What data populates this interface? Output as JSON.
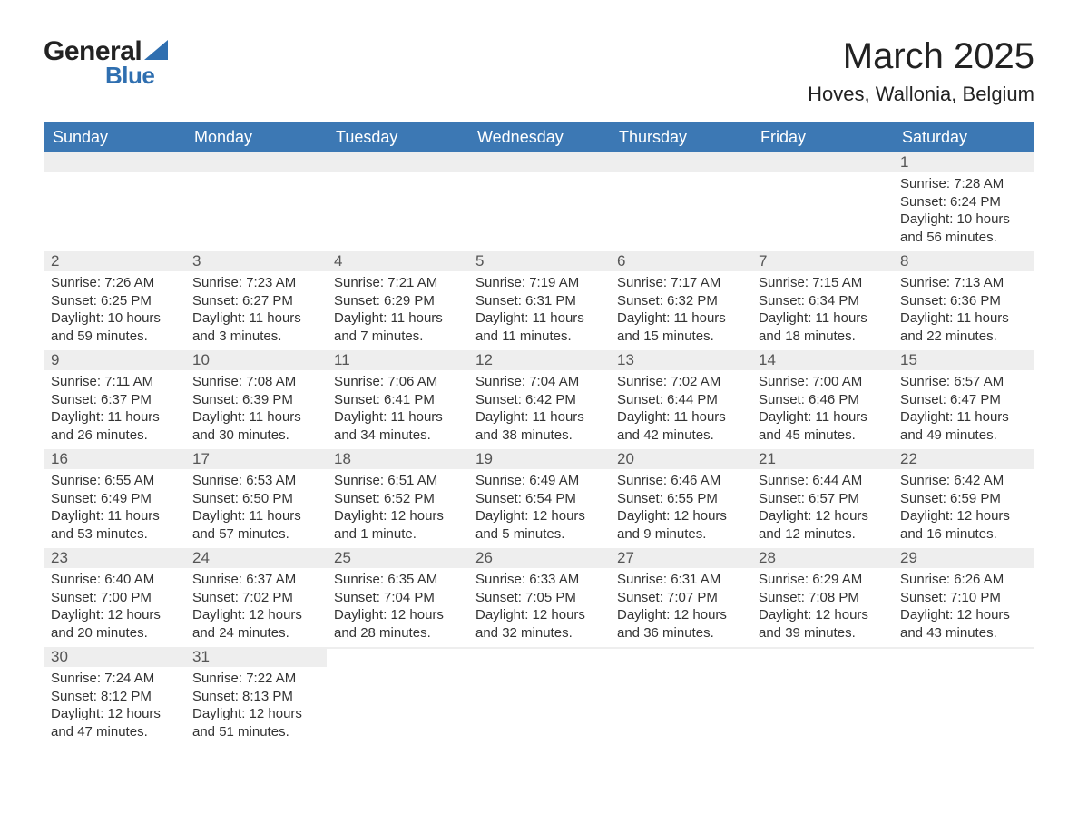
{
  "brand": {
    "general": "General",
    "blue": "Blue"
  },
  "title": "March 2025",
  "location": "Hoves, Wallonia, Belgium",
  "colors": {
    "header_bg": "#3c78b4",
    "header_text": "#ffffff",
    "daynum_bg": "#eeeeee",
    "row_border": "#3c78b4",
    "body_text": "#333333",
    "brand_blue": "#2f6fb0",
    "page_bg": "#ffffff"
  },
  "fonts": {
    "title_size_pt": 30,
    "location_size_pt": 17,
    "weekday_size_pt": 14,
    "daynum_size_pt": 13,
    "body_size_pt": 11
  },
  "weekdays": [
    "Sunday",
    "Monday",
    "Tuesday",
    "Wednesday",
    "Thursday",
    "Friday",
    "Saturday"
  ],
  "leading_blanks": 6,
  "days": [
    {
      "n": "1",
      "sunrise": "Sunrise: 7:28 AM",
      "sunset": "Sunset: 6:24 PM",
      "dl1": "Daylight: 10 hours",
      "dl2": "and 56 minutes."
    },
    {
      "n": "2",
      "sunrise": "Sunrise: 7:26 AM",
      "sunset": "Sunset: 6:25 PM",
      "dl1": "Daylight: 10 hours",
      "dl2": "and 59 minutes."
    },
    {
      "n": "3",
      "sunrise": "Sunrise: 7:23 AM",
      "sunset": "Sunset: 6:27 PM",
      "dl1": "Daylight: 11 hours",
      "dl2": "and 3 minutes."
    },
    {
      "n": "4",
      "sunrise": "Sunrise: 7:21 AM",
      "sunset": "Sunset: 6:29 PM",
      "dl1": "Daylight: 11 hours",
      "dl2": "and 7 minutes."
    },
    {
      "n": "5",
      "sunrise": "Sunrise: 7:19 AM",
      "sunset": "Sunset: 6:31 PM",
      "dl1": "Daylight: 11 hours",
      "dl2": "and 11 minutes."
    },
    {
      "n": "6",
      "sunrise": "Sunrise: 7:17 AM",
      "sunset": "Sunset: 6:32 PM",
      "dl1": "Daylight: 11 hours",
      "dl2": "and 15 minutes."
    },
    {
      "n": "7",
      "sunrise": "Sunrise: 7:15 AM",
      "sunset": "Sunset: 6:34 PM",
      "dl1": "Daylight: 11 hours",
      "dl2": "and 18 minutes."
    },
    {
      "n": "8",
      "sunrise": "Sunrise: 7:13 AM",
      "sunset": "Sunset: 6:36 PM",
      "dl1": "Daylight: 11 hours",
      "dl2": "and 22 minutes."
    },
    {
      "n": "9",
      "sunrise": "Sunrise: 7:11 AM",
      "sunset": "Sunset: 6:37 PM",
      "dl1": "Daylight: 11 hours",
      "dl2": "and 26 minutes."
    },
    {
      "n": "10",
      "sunrise": "Sunrise: 7:08 AM",
      "sunset": "Sunset: 6:39 PM",
      "dl1": "Daylight: 11 hours",
      "dl2": "and 30 minutes."
    },
    {
      "n": "11",
      "sunrise": "Sunrise: 7:06 AM",
      "sunset": "Sunset: 6:41 PM",
      "dl1": "Daylight: 11 hours",
      "dl2": "and 34 minutes."
    },
    {
      "n": "12",
      "sunrise": "Sunrise: 7:04 AM",
      "sunset": "Sunset: 6:42 PM",
      "dl1": "Daylight: 11 hours",
      "dl2": "and 38 minutes."
    },
    {
      "n": "13",
      "sunrise": "Sunrise: 7:02 AM",
      "sunset": "Sunset: 6:44 PM",
      "dl1": "Daylight: 11 hours",
      "dl2": "and 42 minutes."
    },
    {
      "n": "14",
      "sunrise": "Sunrise: 7:00 AM",
      "sunset": "Sunset: 6:46 PM",
      "dl1": "Daylight: 11 hours",
      "dl2": "and 45 minutes."
    },
    {
      "n": "15",
      "sunrise": "Sunrise: 6:57 AM",
      "sunset": "Sunset: 6:47 PM",
      "dl1": "Daylight: 11 hours",
      "dl2": "and 49 minutes."
    },
    {
      "n": "16",
      "sunrise": "Sunrise: 6:55 AM",
      "sunset": "Sunset: 6:49 PM",
      "dl1": "Daylight: 11 hours",
      "dl2": "and 53 minutes."
    },
    {
      "n": "17",
      "sunrise": "Sunrise: 6:53 AM",
      "sunset": "Sunset: 6:50 PM",
      "dl1": "Daylight: 11 hours",
      "dl2": "and 57 minutes."
    },
    {
      "n": "18",
      "sunrise": "Sunrise: 6:51 AM",
      "sunset": "Sunset: 6:52 PM",
      "dl1": "Daylight: 12 hours",
      "dl2": "and 1 minute."
    },
    {
      "n": "19",
      "sunrise": "Sunrise: 6:49 AM",
      "sunset": "Sunset: 6:54 PM",
      "dl1": "Daylight: 12 hours",
      "dl2": "and 5 minutes."
    },
    {
      "n": "20",
      "sunrise": "Sunrise: 6:46 AM",
      "sunset": "Sunset: 6:55 PM",
      "dl1": "Daylight: 12 hours",
      "dl2": "and 9 minutes."
    },
    {
      "n": "21",
      "sunrise": "Sunrise: 6:44 AM",
      "sunset": "Sunset: 6:57 PM",
      "dl1": "Daylight: 12 hours",
      "dl2": "and 12 minutes."
    },
    {
      "n": "22",
      "sunrise": "Sunrise: 6:42 AM",
      "sunset": "Sunset: 6:59 PM",
      "dl1": "Daylight: 12 hours",
      "dl2": "and 16 minutes."
    },
    {
      "n": "23",
      "sunrise": "Sunrise: 6:40 AM",
      "sunset": "Sunset: 7:00 PM",
      "dl1": "Daylight: 12 hours",
      "dl2": "and 20 minutes."
    },
    {
      "n": "24",
      "sunrise": "Sunrise: 6:37 AM",
      "sunset": "Sunset: 7:02 PM",
      "dl1": "Daylight: 12 hours",
      "dl2": "and 24 minutes."
    },
    {
      "n": "25",
      "sunrise": "Sunrise: 6:35 AM",
      "sunset": "Sunset: 7:04 PM",
      "dl1": "Daylight: 12 hours",
      "dl2": "and 28 minutes."
    },
    {
      "n": "26",
      "sunrise": "Sunrise: 6:33 AM",
      "sunset": "Sunset: 7:05 PM",
      "dl1": "Daylight: 12 hours",
      "dl2": "and 32 minutes."
    },
    {
      "n": "27",
      "sunrise": "Sunrise: 6:31 AM",
      "sunset": "Sunset: 7:07 PM",
      "dl1": "Daylight: 12 hours",
      "dl2": "and 36 minutes."
    },
    {
      "n": "28",
      "sunrise": "Sunrise: 6:29 AM",
      "sunset": "Sunset: 7:08 PM",
      "dl1": "Daylight: 12 hours",
      "dl2": "and 39 minutes."
    },
    {
      "n": "29",
      "sunrise": "Sunrise: 6:26 AM",
      "sunset": "Sunset: 7:10 PM",
      "dl1": "Daylight: 12 hours",
      "dl2": "and 43 minutes."
    },
    {
      "n": "30",
      "sunrise": "Sunrise: 7:24 AM",
      "sunset": "Sunset: 8:12 PM",
      "dl1": "Daylight: 12 hours",
      "dl2": "and 47 minutes."
    },
    {
      "n": "31",
      "sunrise": "Sunrise: 7:22 AM",
      "sunset": "Sunset: 8:13 PM",
      "dl1": "Daylight: 12 hours",
      "dl2": "and 51 minutes."
    }
  ]
}
